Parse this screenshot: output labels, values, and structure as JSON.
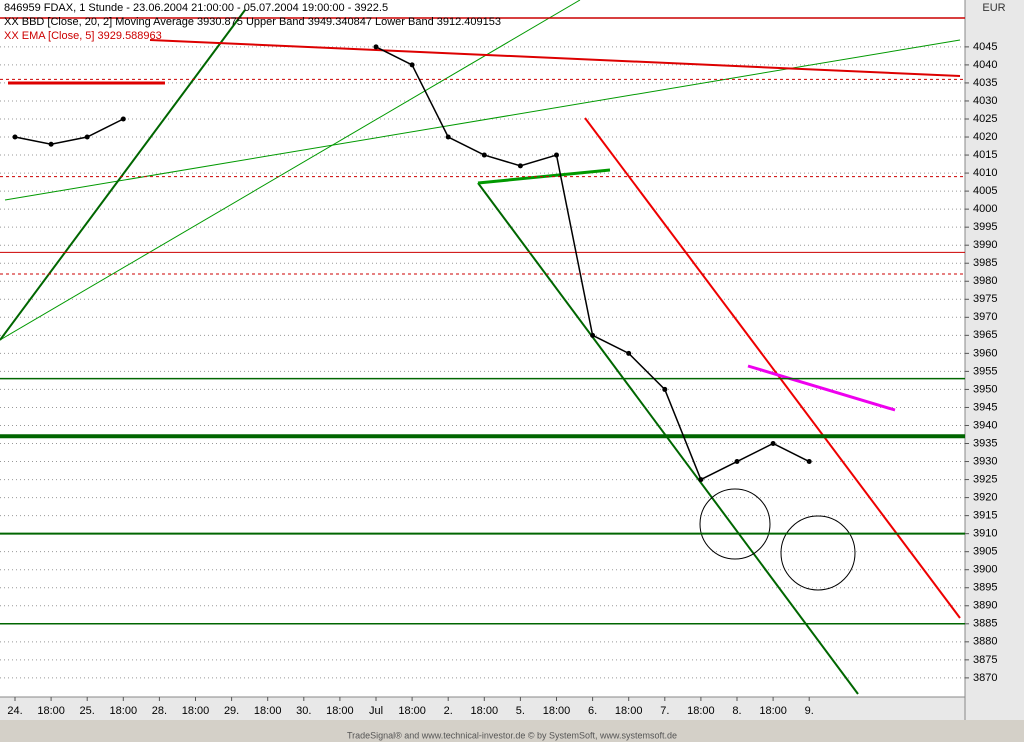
{
  "chart_data": {
    "type": "line",
    "title": "846959 FDAX, 1 Stunde - 23.06.2004 21:00:00 - 05.07.2004 19:00:00 - 3922.5",
    "legend_lines": [
      {
        "text": "XX BBD [Close, 20, 2] Moving Average 3930.875 Upper Band 3949.340847 Lower Band 3912.409153",
        "color": "#000000"
      },
      {
        "text": "XX EMA [Close, 5] 3929.588963",
        "color": "#cc0000"
      }
    ],
    "unit": "EUR",
    "footer": "TradeSignal® and www.technical-investor.de © by SystemSoft, www.systemsoft.de",
    "categories": [
      "24.",
      "18:00",
      "25.",
      "18:00",
      "28.",
      "18:00",
      "29.",
      "18:00",
      "30.",
      "18:00",
      "Jul",
      "18:00",
      "2.",
      "18:00",
      "5.",
      "18:00",
      "6.",
      "18:00",
      "7.",
      "18:00",
      "8.",
      "18:00",
      "9."
    ],
    "series": [
      {
        "name": "Close",
        "color": "#000000",
        "values": [
          4020,
          4018,
          4020,
          4025,
          null,
          null,
          null,
          null,
          null,
          null,
          4045,
          4040,
          4020,
          4015,
          4012,
          4015,
          3965,
          3960,
          3950,
          3925,
          3930,
          3935,
          3930
        ]
      }
    ],
    "levels": [
      {
        "value": 4053,
        "color": "#cc0000",
        "style": "solid",
        "width": 1.5
      },
      {
        "value": 4036,
        "color": "#cc0000",
        "style": "dashed",
        "width": 1
      },
      {
        "value": 4009,
        "color": "#cc0000",
        "style": "dashed",
        "width": 1
      },
      {
        "value": 3988,
        "color": "#cc0000",
        "style": "solid",
        "width": 1
      },
      {
        "value": 3982,
        "color": "#cc0000",
        "style": "dashed",
        "width": 1
      },
      {
        "value": 3953,
        "color": "#006600",
        "style": "solid",
        "width": 1.5
      },
      {
        "value": 3937,
        "color": "#006600",
        "style": "solid",
        "width": 4
      },
      {
        "value": 3910,
        "color": "#006600",
        "style": "solid",
        "width": 2
      },
      {
        "value": 3885,
        "color": "#006600",
        "style": "solid",
        "width": 1.5
      }
    ],
    "ylim": [
      3864.7,
      4058
    ],
    "yticks": [
      3870,
      3875,
      3880,
      3885,
      3890,
      3895,
      3900,
      3905,
      3910,
      3915,
      3920,
      3925,
      3930,
      3935,
      3940,
      3945,
      3950,
      3955,
      3960,
      3965,
      3970,
      3975,
      3980,
      3985,
      3990,
      3995,
      4000,
      4005,
      4010,
      4015,
      4020,
      4025,
      4030,
      4035,
      4040,
      4045
    ],
    "grid": true
  }
}
